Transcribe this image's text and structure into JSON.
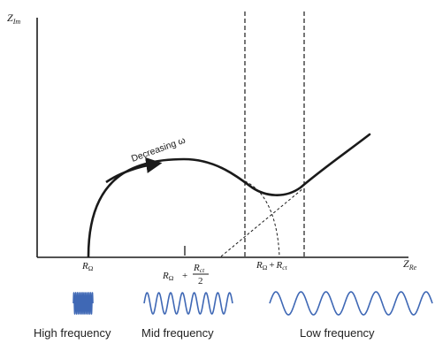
{
  "axes": {
    "y_label": "Z",
    "y_sub": "Im",
    "x_label": "Z",
    "x_sub": "Re"
  },
  "annotation": {
    "text": "Decreasing ω"
  },
  "x_ticks": {
    "r_omega": {
      "main": "R",
      "sub": "Ω"
    },
    "midpoint": {
      "lhs_main": "R",
      "lhs_sub": "Ω",
      "plus": "+",
      "num_main": "R",
      "num_sub": "ct",
      "den": "2"
    },
    "sum": {
      "a_main": "R",
      "a_sub": "Ω",
      "plus": "+",
      "b_main": "R",
      "b_sub": "ct"
    }
  },
  "frequency_bands": [
    {
      "label": "High frequency"
    },
    {
      "label": "Mid frequency"
    },
    {
      "label": "Low frequency"
    }
  ],
  "colors": {
    "wave": "#3f68b5",
    "ink": "#1a1a1a"
  }
}
